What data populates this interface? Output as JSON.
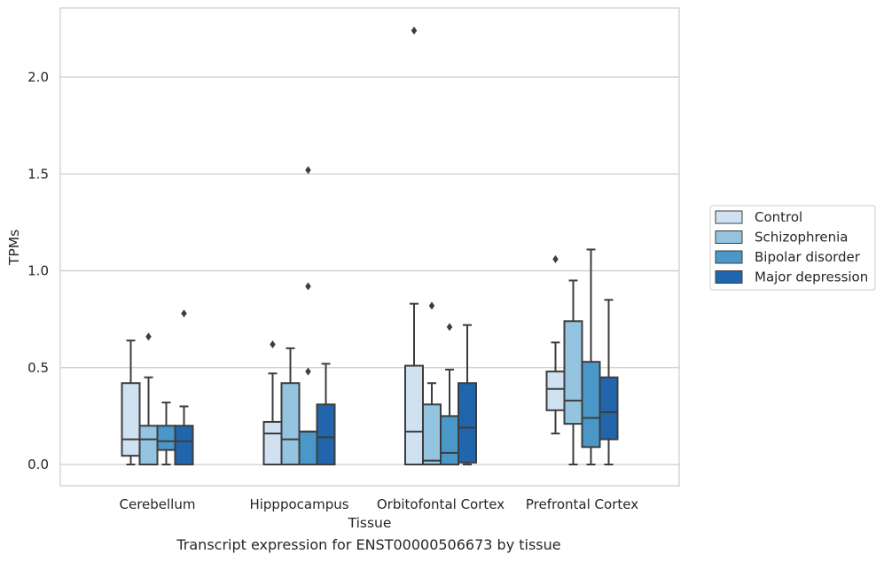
{
  "caption": "Transcript expression for ENST00000506673 by tissue",
  "chart_data": {
    "type": "box",
    "xlabel": "Tissue",
    "ylabel": "TPMs",
    "ylim": [
      -0.11,
      2.36
    ],
    "yticks": [
      0.0,
      0.5,
      1.0,
      1.5,
      2.0
    ],
    "ytick_labels": [
      "0.0",
      "0.5",
      "1.0",
      "1.5",
      "2.0"
    ],
    "grid": "horizontal",
    "legend_position": "right",
    "categories": [
      "Cerebellum",
      "Hipppocampus",
      "Orbitofontal Cortex",
      "Prefrontal Cortex"
    ],
    "series": [
      {
        "name": "Control",
        "color": "#d0e1f2",
        "boxes": [
          {
            "whislo": 0.0,
            "q1": 0.045,
            "med": 0.13,
            "q3": 0.42,
            "whishi": 0.64,
            "fliers": []
          },
          {
            "whislo": 0.0,
            "q1": 0.0,
            "med": 0.16,
            "q3": 0.22,
            "whishi": 0.47,
            "fliers": [
              0.62
            ]
          },
          {
            "whislo": 0.0,
            "q1": 0.0,
            "med": 0.17,
            "q3": 0.51,
            "whishi": 0.83,
            "fliers": [
              2.24
            ]
          },
          {
            "whislo": 0.16,
            "q1": 0.28,
            "med": 0.39,
            "q3": 0.48,
            "whishi": 0.63,
            "fliers": [
              1.06
            ]
          }
        ]
      },
      {
        "name": "Schizophrenia",
        "color": "#94c4df",
        "boxes": [
          {
            "whislo": 0.0,
            "q1": 0.0,
            "med": 0.13,
            "q3": 0.2,
            "whishi": 0.45,
            "fliers": [
              0.66
            ]
          },
          {
            "whislo": 0.0,
            "q1": 0.0,
            "med": 0.13,
            "q3": 0.42,
            "whishi": 0.6,
            "fliers": []
          },
          {
            "whislo": 0.0,
            "q1": 0.0,
            "med": 0.02,
            "q3": 0.31,
            "whishi": 0.42,
            "fliers": [
              0.82
            ]
          },
          {
            "whislo": 0.0,
            "q1": 0.21,
            "med": 0.33,
            "q3": 0.74,
            "whishi": 0.95,
            "fliers": []
          }
        ]
      },
      {
        "name": "Bipolar disorder",
        "color": "#4a98c9",
        "boxes": [
          {
            "whislo": 0.0,
            "q1": 0.075,
            "med": 0.12,
            "q3": 0.2,
            "whishi": 0.32,
            "fliers": []
          },
          {
            "whislo": 0.0,
            "q1": 0.0,
            "med": 0.17,
            "q3": 0.17,
            "whishi": 0.17,
            "fliers": [
              0.48,
              0.92,
              1.52
            ]
          },
          {
            "whislo": 0.0,
            "q1": 0.0,
            "med": 0.06,
            "q3": 0.25,
            "whishi": 0.49,
            "fliers": [
              0.71
            ]
          },
          {
            "whislo": 0.0,
            "q1": 0.09,
            "med": 0.24,
            "q3": 0.53,
            "whishi": 1.11,
            "fliers": []
          }
        ]
      },
      {
        "name": "Major depression",
        "color": "#2166ac",
        "boxes": [
          {
            "whislo": 0.0,
            "q1": 0.0,
            "med": 0.12,
            "q3": 0.2,
            "whishi": 0.3,
            "fliers": [
              0.78
            ]
          },
          {
            "whislo": 0.0,
            "q1": 0.0,
            "med": 0.14,
            "q3": 0.31,
            "whishi": 0.52,
            "fliers": []
          },
          {
            "whislo": 0.0,
            "q1": 0.01,
            "med": 0.19,
            "q3": 0.42,
            "whishi": 0.72,
            "fliers": []
          },
          {
            "whislo": 0.0,
            "q1": 0.13,
            "med": 0.27,
            "q3": 0.45,
            "whishi": 0.85,
            "fliers": []
          }
        ]
      }
    ]
  }
}
